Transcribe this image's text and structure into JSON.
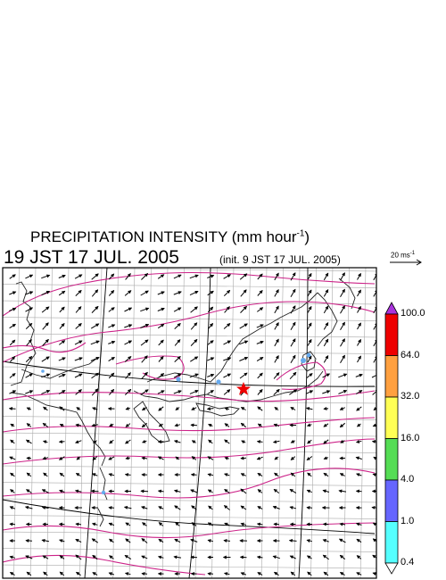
{
  "header": {
    "title": "PRECIPITATION INTENSITY (mm hour",
    "title_exp": "-1",
    "title_close": ")",
    "datetime": "19 JST 17 JUL. 2005",
    "init": "(init. 9 JST 17 JUL. 2005)"
  },
  "wind_scale": {
    "label": "20 ms",
    "label_exp": "-1"
  },
  "colorbar": {
    "labels": [
      "100.0",
      "64.0",
      "32.0",
      "16.0",
      "4.0",
      "1.0",
      "0.4"
    ],
    "colors": [
      "#aa33dd",
      "#ee0000",
      "#ffa040",
      "#ffff55",
      "#55dd55",
      "#6666ff",
      "#55ffff",
      "#ffffff"
    ]
  },
  "map": {
    "marker": "red-star",
    "isobar_color": "#cc2288",
    "wind_arrow_color": "#000000",
    "grid_color": "#aaaaaa",
    "rain_color": "#66aaee"
  }
}
